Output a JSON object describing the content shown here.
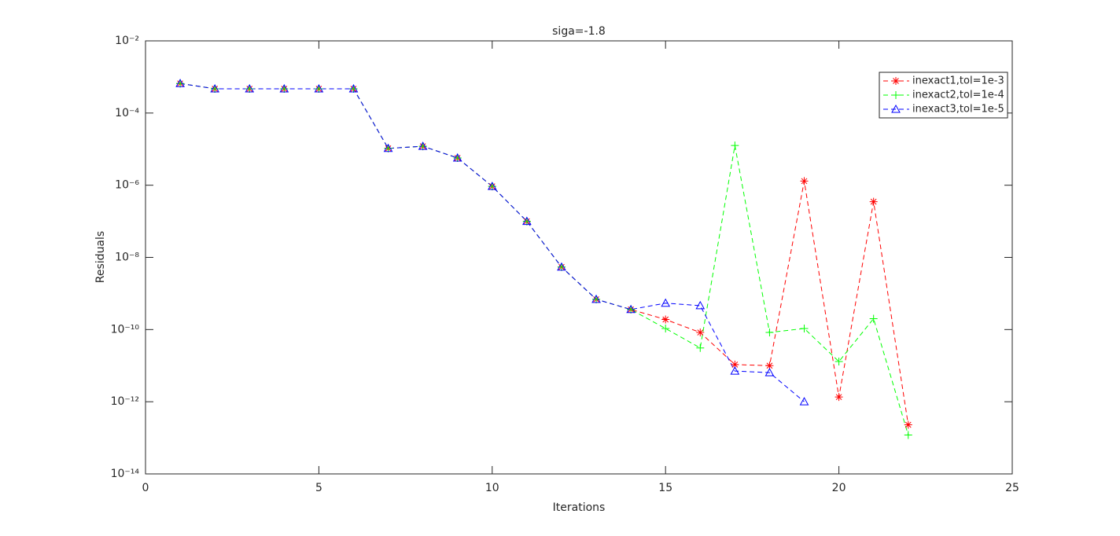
{
  "chart_data": {
    "type": "line",
    "title": "siga=-1.8",
    "xlabel": "Iterations",
    "ylabel": "Residuals",
    "x": [
      1,
      2,
      3,
      4,
      5,
      6,
      7,
      8,
      9,
      10,
      11,
      12,
      13,
      14,
      15,
      16,
      17,
      18,
      19,
      20,
      21,
      22
    ],
    "series": [
      {
        "name": "inexact1,tol=1e-3",
        "color": "#ff0000",
        "marker": "star",
        "values": [
          0.00066,
          0.00047,
          0.00047,
          0.00047,
          0.00047,
          0.00047,
          1.05e-05,
          1.2e-05,
          5.7e-06,
          9.3e-07,
          1e-07,
          5.4e-09,
          6.9e-10,
          3.6e-10,
          1.9e-10,
          8.3e-11,
          1.07e-11,
          1e-11,
          1.3e-06,
          1.35e-12,
          3.5e-07,
          2.3e-13
        ]
      },
      {
        "name": "inexact2,tol=1e-4",
        "color": "#00ff00",
        "marker": "plus",
        "values": [
          0.00066,
          0.00047,
          0.00047,
          0.00047,
          0.00047,
          0.00047,
          1.05e-05,
          1.2e-05,
          5.7e-06,
          9.3e-07,
          1e-07,
          5.4e-09,
          6.9e-10,
          3.6e-10,
          1.07e-10,
          3.1e-11,
          1.26e-05,
          8.3e-11,
          1.07e-10,
          1.3e-11,
          2e-10,
          1.2e-13
        ]
      },
      {
        "name": "inexact3,tol=1e-5",
        "color": "#0000ff",
        "marker": "triangle",
        "values": [
          0.00066,
          0.00047,
          0.00047,
          0.00047,
          0.00047,
          0.00047,
          1.05e-05,
          1.2e-05,
          5.7e-06,
          9.3e-07,
          1e-07,
          5.4e-09,
          6.9e-10,
          3.6e-10,
          5.4e-10,
          4.6e-10,
          7.1e-12,
          6.4e-12,
          1e-12,
          null,
          null,
          null
        ]
      }
    ],
    "xlim": [
      0,
      25
    ],
    "xticks": [
      0,
      5,
      10,
      15,
      20,
      25
    ],
    "ylim": [
      1e-14,
      0.01
    ],
    "y_log": true,
    "yticks": [
      {
        "value": 1e-14,
        "label": "10⁻¹⁴"
      },
      {
        "value": 1e-12,
        "label": "10⁻¹²"
      },
      {
        "value": 1e-10,
        "label": "10⁻¹⁰"
      },
      {
        "value": 1e-08,
        "label": "10⁻⁸"
      },
      {
        "value": 1e-06,
        "label": "10⁻⁶"
      },
      {
        "value": 0.0001,
        "label": "10⁻⁴"
      },
      {
        "value": 0.01,
        "label": "10⁻²"
      }
    ],
    "line_style": "dashed",
    "legend": "upper right"
  }
}
